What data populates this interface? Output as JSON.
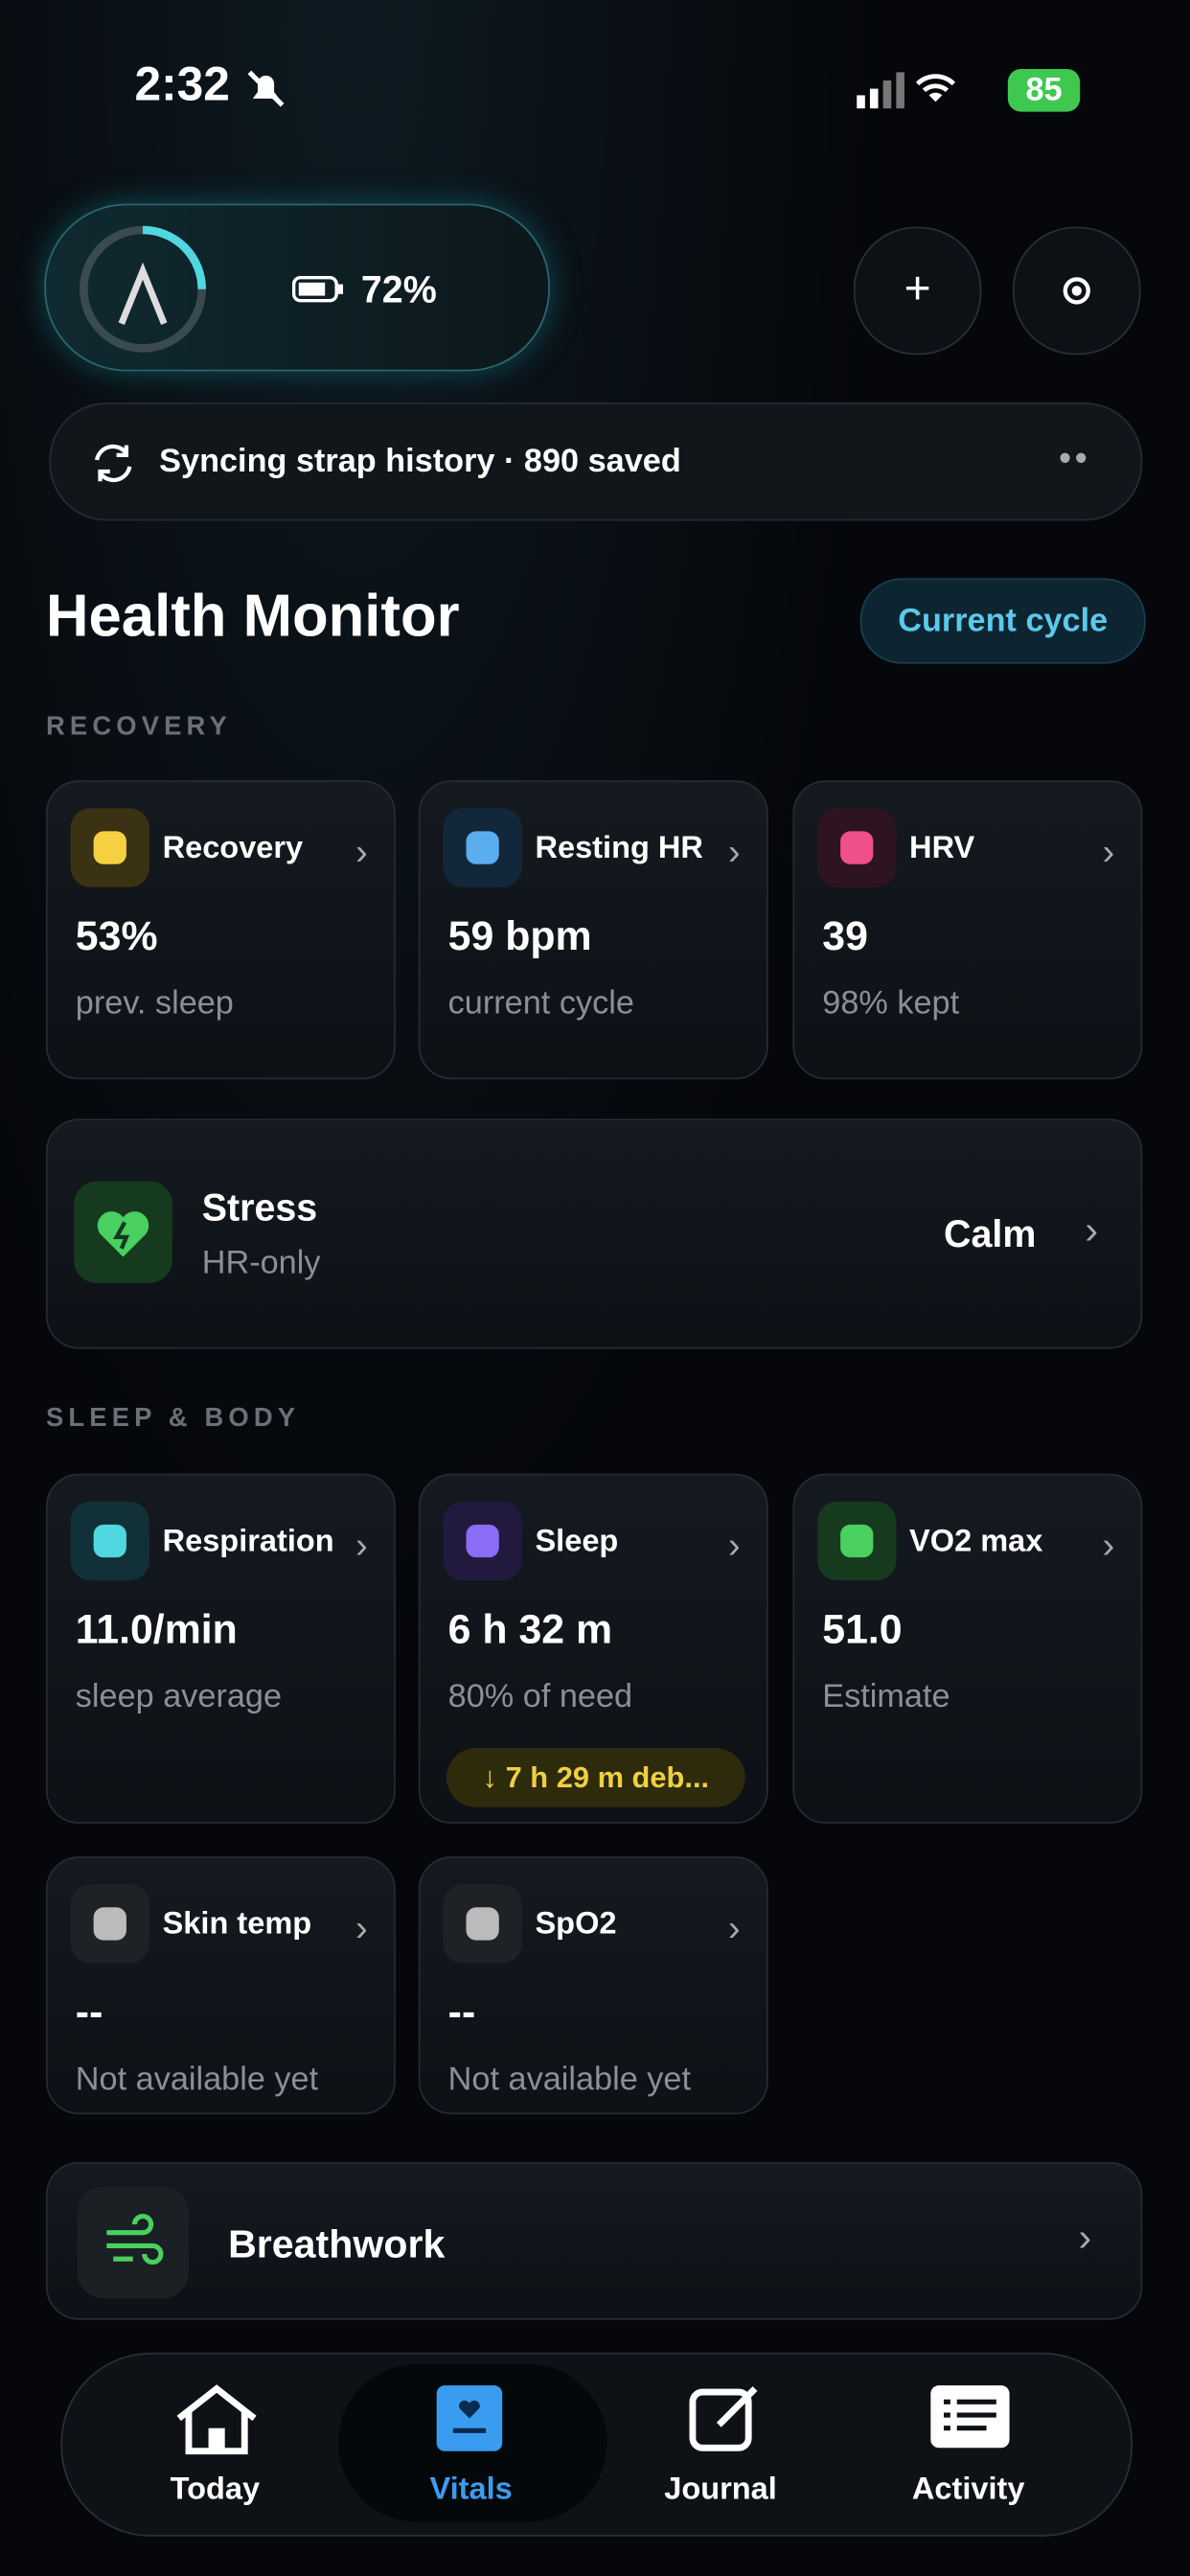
{
  "status": {
    "time": "2:32",
    "battery": "85"
  },
  "device": {
    "battery": "72%"
  },
  "sync": {
    "text": "Syncing strap history · 890 saved"
  },
  "header": {
    "title": "Health Monitor",
    "button": "Current cycle"
  },
  "recovery": {
    "label": "RECOVERY",
    "cards": [
      {
        "title": "Recovery",
        "value": "53%",
        "sub": "prev. sleep"
      },
      {
        "title": "Resting HR",
        "value": "59 bpm",
        "sub": "current cycle"
      },
      {
        "title": "HRV",
        "value": "39",
        "sub": "98% kept"
      }
    ]
  },
  "stress": {
    "title": "Stress",
    "sub": "HR-only",
    "state": "Calm"
  },
  "sleep_body": {
    "label": "SLEEP & BODY",
    "cards": [
      {
        "title": "Respiration",
        "value": "11.0/min",
        "sub": "sleep average"
      },
      {
        "title": "Sleep",
        "value": "6 h 32 m",
        "sub": "80% of need",
        "badge": "↓ 7 h 29 m deb..."
      },
      {
        "title": "VO2 max",
        "value": "51.0",
        "sub": "Estimate"
      },
      {
        "title": "Skin temp",
        "value": "--",
        "sub": "Not available yet"
      },
      {
        "title": "SpO2",
        "value": "--",
        "sub": "Not available yet"
      }
    ]
  },
  "breathwork": {
    "title": "Breathwork"
  },
  "tabs": [
    "Today",
    "Vitals",
    "Journal",
    "Activity"
  ]
}
